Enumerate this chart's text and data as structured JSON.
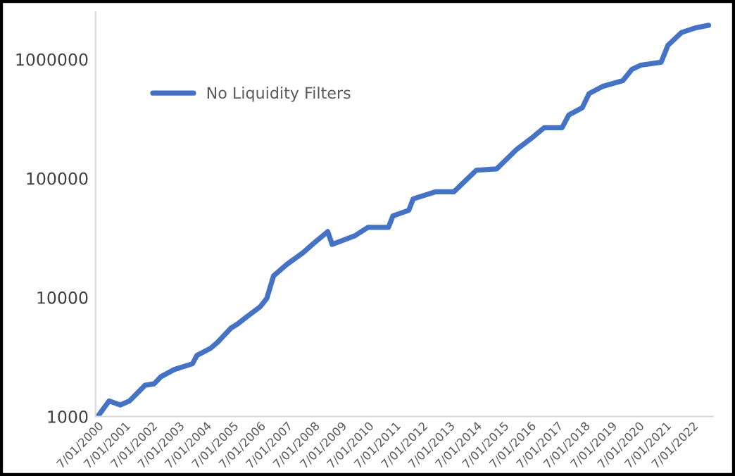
{
  "chart_data": {
    "type": "line",
    "log": "y",
    "legend": "top left",
    "grid": false,
    "marker": "none",
    "line_style": "solid",
    "xlim": [
      "2000-06-01",
      "2023-04-01"
    ],
    "xticks": [
      {
        "value": "2000-07-01",
        "label": "7/01/2000"
      },
      {
        "value": "2001-07-01",
        "label": "7/01/2001"
      },
      {
        "value": "2002-07-01",
        "label": "7/01/2002"
      },
      {
        "value": "2003-07-01",
        "label": "7/01/2003"
      },
      {
        "value": "2004-07-01",
        "label": "7/01/2004"
      },
      {
        "value": "2005-07-01",
        "label": "7/01/2005"
      },
      {
        "value": "2006-07-01",
        "label": "7/01/2006"
      },
      {
        "value": "2007-07-01",
        "label": "7/01/2007"
      },
      {
        "value": "2008-07-01",
        "label": "7/01/2008"
      },
      {
        "value": "2009-07-01",
        "label": "7/01/2009"
      },
      {
        "value": "2010-07-01",
        "label": "7/01/2010"
      },
      {
        "value": "2011-07-01",
        "label": "7/01/2011"
      },
      {
        "value": "2012-07-01",
        "label": "7/01/2012"
      },
      {
        "value": "2013-07-01",
        "label": "7/01/2013"
      },
      {
        "value": "2014-07-01",
        "label": "7/01/2014"
      },
      {
        "value": "2015-07-01",
        "label": "7/01/2015"
      },
      {
        "value": "2016-07-01",
        "label": "7/01/2016"
      },
      {
        "value": "2017-07-01",
        "label": "7/01/2017"
      },
      {
        "value": "2018-07-01",
        "label": "7/01/2018"
      },
      {
        "value": "2019-07-01",
        "label": "7/01/2019"
      },
      {
        "value": "2020-07-01",
        "label": "7/01/2020"
      },
      {
        "value": "2021-07-01",
        "label": "7/01/2021"
      },
      {
        "value": "2022-07-01",
        "label": "7/01/2022"
      }
    ],
    "ylim": [
      1000,
      2500000
    ],
    "yticks": [
      1000,
      10000,
      100000,
      1000000
    ],
    "x": [
      "2000-07",
      "2000-12",
      "2001-05",
      "2001-09",
      "2002-04",
      "2002-08",
      "2002-11",
      "2003-05",
      "2004-01",
      "2004-03",
      "2004-09",
      "2004-12",
      "2005-06",
      "2005-09",
      "2006-01",
      "2006-07",
      "2006-10",
      "2007-01",
      "2007-07",
      "2008-02",
      "2008-07",
      "2009-01",
      "2009-03",
      "2010-01",
      "2010-07",
      "2011-04",
      "2011-06",
      "2012-01",
      "2012-03",
      "2013-01",
      "2013-09",
      "2014-07",
      "2015-04",
      "2016-01",
      "2016-07",
      "2017-01",
      "2017-09",
      "2017-12",
      "2018-06",
      "2018-09",
      "2019-03",
      "2019-12",
      "2020-04",
      "2020-08",
      "2021-05",
      "2021-08",
      "2022-02",
      "2022-08",
      "2023-02"
    ],
    "series": [
      {
        "name": "No Liquidity Filters",
        "color": "#4472c4",
        "values": [
          1000,
          1350,
          1250,
          1350,
          1830,
          1880,
          2160,
          2480,
          2770,
          3260,
          3740,
          4180,
          5510,
          5980,
          6860,
          8320,
          9810,
          15200,
          19000,
          23700,
          28700,
          35700,
          27900,
          32900,
          38800,
          38800,
          48400,
          54000,
          67300,
          77200,
          77200,
          117000,
          120000,
          176000,
          214000,
          266000,
          266000,
          341000,
          392000,
          515000,
          591000,
          661000,
          823000,
          893000,
          944000,
          1310000,
          1680000,
          1830000,
          1930000
        ]
      }
    ]
  }
}
